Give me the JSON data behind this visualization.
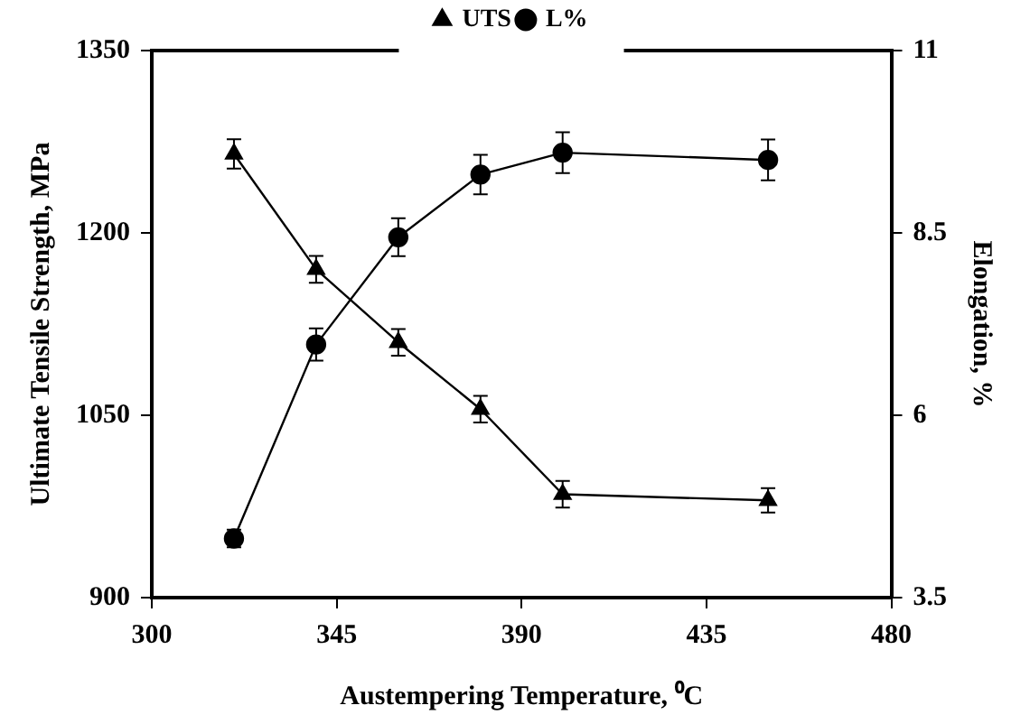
{
  "chart_data": {
    "type": "line",
    "xlabel": "Austempering Temperature, ⁰C",
    "ylabel": "Ultimate Tensile Strength, MPa",
    "y2label": "Elongation, %",
    "x": [
      320,
      340,
      360,
      380,
      400,
      450
    ],
    "series": [
      {
        "name": "UTS",
        "color": "#000000",
        "marker": "triangle",
        "values": [
          1265,
          1170,
          1110,
          1055,
          985,
          980
        ],
        "errors": [
          12,
          11,
          11,
          11,
          11,
          10
        ]
      },
      {
        "name": "L%",
        "color": "#000000",
        "marker": "circle",
        "axis": "y2",
        "values": [
          4.31,
          6.97,
          8.44,
          9.3,
          9.6,
          9.5
        ],
        "errors": [
          0.12,
          0.22,
          0.26,
          0.27,
          0.28,
          0.28
        ]
      }
    ],
    "xlim": [
      300,
      480
    ],
    "xticks": [
      300,
      345,
      390,
      435,
      480
    ],
    "ylim": [
      900,
      1350
    ],
    "yticks": [
      900,
      1050,
      1200,
      1350
    ],
    "y2lim": [
      3.5,
      11
    ],
    "y2ticks": [
      3.5,
      6,
      8.5,
      11
    ],
    "grid": false,
    "legend": "top",
    "line_style": "solid"
  }
}
